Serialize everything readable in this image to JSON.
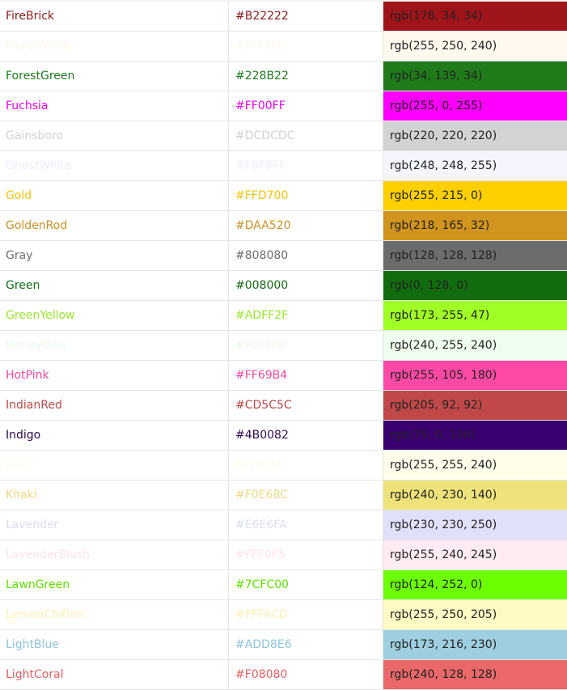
{
  "colors": [
    {
      "name": "FireBrick",
      "hex": "#B22222",
      "rgb": "rgb(178, 34, 34)",
      "text_color": "#8b1a1a",
      "swatch": "#9f1419"
    },
    {
      "name": "FloralWhite",
      "hex": "#FFFAF0",
      "rgb": "rgb(255, 250, 240)",
      "text_color": "#fdf6ea",
      "swatch": "#fff8ec"
    },
    {
      "name": "ForestGreen",
      "hex": "#228B22",
      "rgb": "rgb(34, 139, 34)",
      "text_color": "#1f7a1f",
      "swatch": "#207b1b"
    },
    {
      "name": "Fuchsia",
      "hex": "#FF00FF",
      "rgb": "rgb(255, 0, 255)",
      "text_color": "#f000f0",
      "swatch": "#ff00ff"
    },
    {
      "name": "Gainsboro",
      "hex": "#DCDCDC",
      "rgb": "rgb(220, 220, 220)",
      "text_color": "#d2d2d2",
      "swatch": "#d3d3d3"
    },
    {
      "name": "GhostWhite",
      "hex": "#F8F8FF",
      "rgb": "rgb(248, 248, 255)",
      "text_color": "#eeeefa",
      "swatch": "#f5f5fe"
    },
    {
      "name": "Gold",
      "hex": "#FFD700",
      "rgb": "rgb(255, 215, 0)",
      "text_color": "#f2c40a",
      "swatch": "#ffd000"
    },
    {
      "name": "GoldenRod",
      "hex": "#DAA520",
      "rgb": "rgb(218, 165, 32)",
      "text_color": "#c9932a",
      "swatch": "#d1941c"
    },
    {
      "name": "Gray",
      "hex": "#808080",
      "rgb": "rgb(128, 128, 128)",
      "text_color": "#6d6d6d",
      "swatch": "#6c6c6c"
    },
    {
      "name": "Green",
      "hex": "#008000",
      "rgb": "rgb(0, 128, 0)",
      "text_color": "#156b15",
      "swatch": "#106c0d"
    },
    {
      "name": "GreenYellow",
      "hex": "#ADFF2F",
      "rgb": "rgb(173, 255, 47)",
      "text_color": "#9ae62a",
      "swatch": "#a0ff25"
    },
    {
      "name": "HoneyDew",
      "hex": "#F0FFF0",
      "rgb": "rgb(240, 255, 240)",
      "text_color": "#eaf9ea",
      "swatch": "#eefdee"
    },
    {
      "name": "HotPink",
      "hex": "#FF69B4",
      "rgb": "rgb(255, 105, 180)",
      "text_color": "#f0489e",
      "swatch": "#ff4aa5"
    },
    {
      "name": "IndianRed",
      "hex": "#CD5C5C",
      "rgb": "rgb(205, 92, 92)",
      "text_color": "#b84848",
      "swatch": "#c04848"
    },
    {
      "name": "Indigo",
      "hex": "#4B0082",
      "rgb": "rgb(75, 0, 130)",
      "text_color": "#2e0a50",
      "swatch": "#3a0070"
    },
    {
      "name": "Ivory",
      "hex": "#FFFFF0",
      "rgb": "rgb(255, 255, 240)",
      "text_color": "#fbfbe8",
      "swatch": "#fffeea"
    },
    {
      "name": "Khaki",
      "hex": "#F0E68C",
      "rgb": "rgb(240, 230, 140)",
      "text_color": "#ebd985",
      "swatch": "#eee27a"
    },
    {
      "name": "Lavender",
      "hex": "#E6E6FA",
      "rgb": "rgb(230, 230, 250)",
      "text_color": "#dcdcf2",
      "swatch": "#e0e0f8"
    },
    {
      "name": "LavenderBlush",
      "hex": "#FFF0F5",
      "rgb": "rgb(255, 240, 245)",
      "text_color": "#fde2ea",
      "swatch": "#ffebf1"
    },
    {
      "name": "LawnGreen",
      "hex": "#7CFC00",
      "rgb": "rgb(124, 252, 0)",
      "text_color": "#5fe000",
      "swatch": "#6cff00"
    },
    {
      "name": "LemonChiffon",
      "hex": "#FFFACD",
      "rgb": "rgb(255, 250, 205)",
      "text_color": "#fbf0b8",
      "swatch": "#fff9c3"
    },
    {
      "name": "LightBlue",
      "hex": "#ADD8E6",
      "rgb": "rgb(173, 216, 230)",
      "text_color": "#8fc3d9",
      "swatch": "#9dcfe0"
    },
    {
      "name": "LightCoral",
      "hex": "#F08080",
      "rgb": "rgb(240, 128, 128)",
      "text_color": "#e35f62",
      "swatch": "#ea6869"
    }
  ]
}
